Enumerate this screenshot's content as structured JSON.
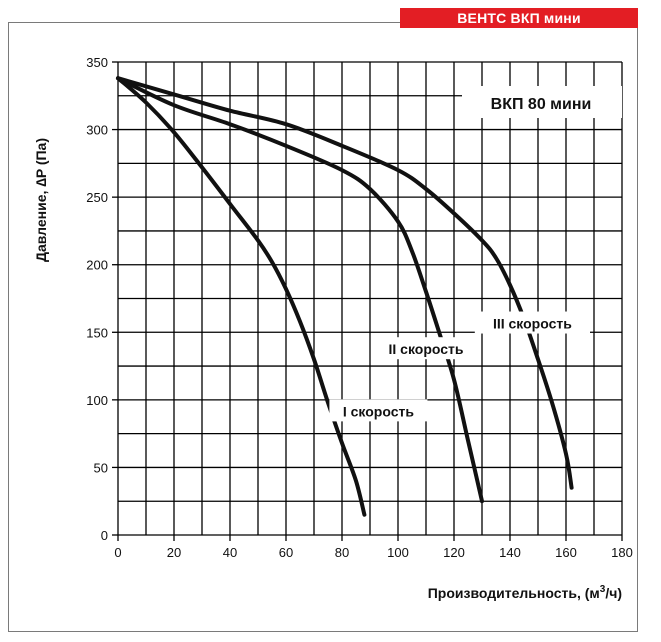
{
  "brand": "ВЕНТС ВКП мини",
  "chart_data": {
    "type": "line",
    "title": "ВКП 80 мини",
    "xlabel": "Производительность, (м³/ч)",
    "ylabel": "Давление, ∆P (Па)",
    "xlim": [
      0,
      180
    ],
    "ylim": [
      0,
      350
    ],
    "x_ticks": [
      0,
      20,
      40,
      60,
      80,
      100,
      120,
      140,
      160,
      180
    ],
    "y_ticks": [
      0,
      50,
      100,
      150,
      200,
      250,
      300,
      350
    ],
    "grid": true,
    "series": [
      {
        "name": "I скорость",
        "x": [
          0,
          10,
          20,
          30,
          40,
          50,
          55,
          60,
          65,
          70,
          75,
          80,
          85,
          88
        ],
        "y": [
          338,
          320,
          298,
          272,
          245,
          218,
          202,
          182,
          158,
          130,
          98,
          68,
          40,
          15
        ]
      },
      {
        "name": "II скорость",
        "x": [
          0,
          20,
          40,
          60,
          80,
          90,
          100,
          105,
          110,
          115,
          120,
          125,
          130
        ],
        "y": [
          338,
          318,
          304,
          288,
          270,
          256,
          232,
          210,
          180,
          148,
          115,
          70,
          25
        ]
      },
      {
        "name": "III скорость",
        "x": [
          0,
          20,
          40,
          60,
          80,
          100,
          110,
          120,
          130,
          135,
          140,
          145,
          150,
          155,
          160,
          162
        ],
        "y": [
          338,
          326,
          314,
          304,
          288,
          270,
          256,
          238,
          218,
          205,
          185,
          160,
          130,
          98,
          60,
          35
        ]
      }
    ],
    "annotations": [
      {
        "text": "I скорость",
        "x": 93,
        "y": 90
      },
      {
        "text": "II скорость",
        "x": 110,
        "y": 136
      },
      {
        "text": "III скорость",
        "x": 148,
        "y": 155
      }
    ]
  }
}
